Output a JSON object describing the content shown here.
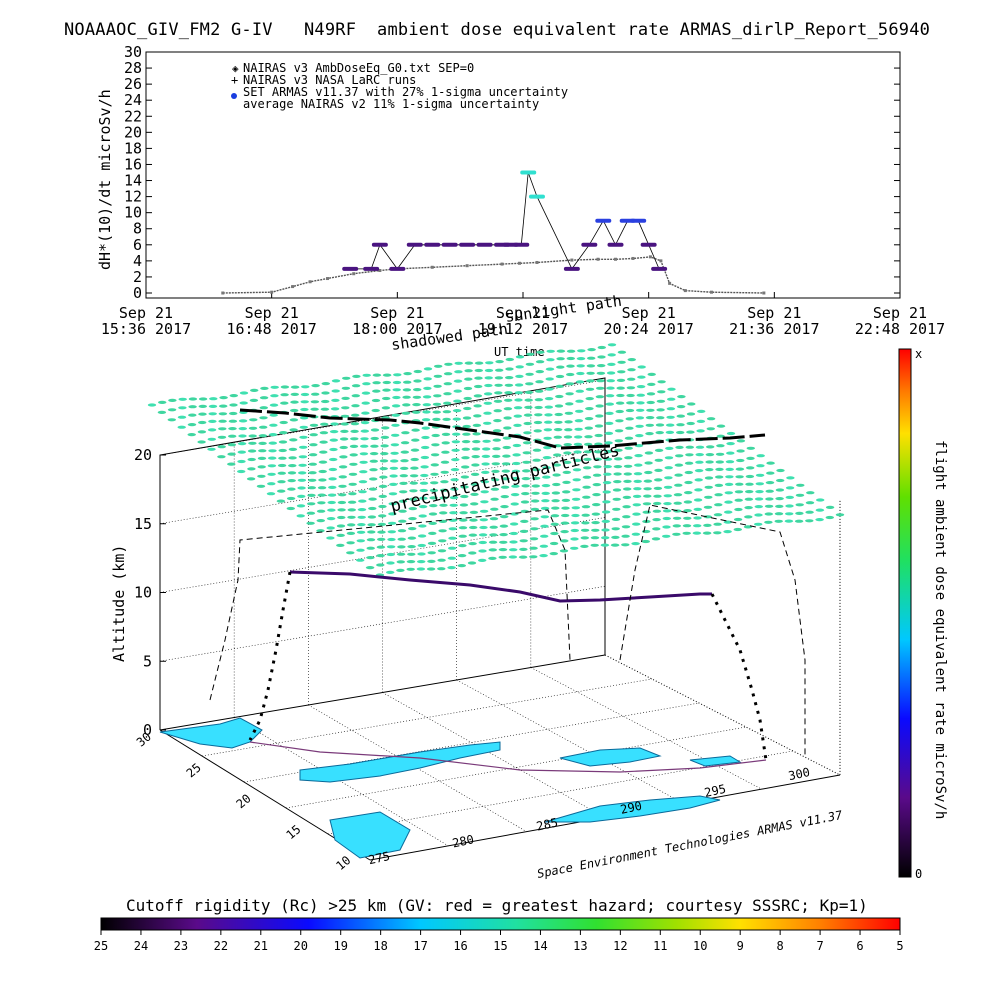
{
  "title": "NOAAAOC_GIV_FM2 G-IV   N49RF  ambient dose equivalent rate ARMAS_dirlP_Report_56940",
  "top_chart": {
    "ylabel": "dH*(10)/dt microSv/h",
    "xlabel": "UT time",
    "yticks": [
      "0",
      "2",
      "4",
      "6",
      "8",
      "10",
      "12",
      "14",
      "16",
      "18",
      "20",
      "22",
      "24",
      "26",
      "28",
      "30"
    ],
    "xticks": [
      {
        "date": "Sep 21",
        "time": "15:36 2017"
      },
      {
        "date": "Sep 21",
        "time": "16:48 2017"
      },
      {
        "date": "Sep 21",
        "time": "18:00 2017"
      },
      {
        "date": "Sep 21",
        "time": "19:12 2017"
      },
      {
        "date": "Sep 21",
        "time": "20:24 2017"
      },
      {
        "date": "Sep 21",
        "time": "21:36 2017"
      },
      {
        "date": "Sep 21",
        "time": "22:48 2017"
      }
    ],
    "legend": [
      "NAIRAS v3 AmbDoseEq_G0.txt SEP=0",
      "NAIRAS v3 NASA LaRC runs",
      "SET ARMAS v11.37 with 27% 1-sigma uncertainty",
      "average NAIRAS v2 11% 1-sigma uncertainty"
    ],
    "overlay_labels": [
      "sunlight path",
      "shadowed path"
    ]
  },
  "chart_data": [
    {
      "type": "scatter",
      "title": "NOAAAOC_GIV_FM2 G-IV   N49RF  ambient dose equivalent rate ARMAS_dirlP_Report_56940",
      "xlabel": "UT time",
      "ylabel": "dH*(10)/dt microSv/h",
      "xlim": [
        "15:36",
        "22:48"
      ],
      "ylim": [
        0,
        30
      ],
      "series": [
        {
          "name": "NAIRAS v3 AmbDoseEq_G0.txt SEP=0",
          "x": [
            "16:20",
            "16:48",
            "17:00",
            "17:10",
            "17:20",
            "17:35",
            "17:50",
            "18:00",
            "18:20",
            "18:40",
            "19:00",
            "19:10",
            "19:20",
            "19:40",
            "19:55",
            "20:05",
            "20:15",
            "20:25",
            "20:31",
            "20:36",
            "20:45",
            "21:00",
            "21:30"
          ],
          "y": [
            0.0,
            0.1,
            0.8,
            1.4,
            1.8,
            2.4,
            2.8,
            3.0,
            3.2,
            3.4,
            3.6,
            3.7,
            3.8,
            4.1,
            4.2,
            4.2,
            4.3,
            4.5,
            4.0,
            1.2,
            0.3,
            0.1,
            0.0
          ]
        },
        {
          "name": "SET ARMAS v11.37 with 27% 1-sigma uncertainty",
          "x": [
            "17:33",
            "17:45",
            "17:50",
            "18:00",
            "18:10",
            "18:20",
            "18:30",
            "18:40",
            "18:50",
            "19:00",
            "19:05",
            "19:11",
            "19:15",
            "19:20",
            "19:40",
            "19:50",
            "19:58",
            "20:05",
            "20:12",
            "20:18",
            "20:24",
            "20:30"
          ],
          "y": [
            3,
            3,
            6,
            3,
            6,
            6,
            6,
            6,
            6,
            6,
            6,
            6,
            15,
            12,
            3,
            6,
            9,
            6,
            9,
            9,
            6,
            3
          ]
        }
      ]
    },
    {
      "type": "scatter",
      "title": "",
      "xlabel": "",
      "ylabel": "Altitude (km)",
      "zlim": [
        0,
        20
      ],
      "zticks": [
        "0",
        "5",
        "10",
        "15",
        "20"
      ],
      "lat_ticks": [
        "10",
        "15",
        "20",
        "25",
        "30"
      ],
      "lon_ticks": [
        "275",
        "280",
        "285",
        "290",
        "295",
        "300"
      ],
      "colorbar": {
        "label": "flight ambient dose equivalent rate microSv/h",
        "min": "0",
        "max": "x"
      },
      "annotation": "precipitating particles",
      "credit": "Space Environment Technologies ARMAS v11.37",
      "series": [
        {
          "name": "flight track",
          "x": [
            0,
            10,
            25,
            45,
            55,
            70,
            80,
            90
          ],
          "y": [
            11.5,
            11.8,
            11.5,
            10.8,
            9.6,
            9.5,
            9.8,
            10.2
          ]
        }
      ]
    },
    {
      "type": "heatmap",
      "title": "Cutoff rigidity (Rc) >25 km (GV: red = greatest hazard; courtesy SSSRC; Kp=1)",
      "ticks": [
        "25",
        "24",
        "23",
        "22",
        "21",
        "20",
        "19",
        "18",
        "17",
        "16",
        "15",
        "14",
        "13",
        "12",
        "11",
        "10",
        "9",
        "8",
        "7",
        "6",
        "5"
      ]
    }
  ],
  "colors": {
    "nairas": "#8a8a8a",
    "armas_low": "#4a1480",
    "armas_mid": "#2a40e0",
    "armas_high": "#30e0d0",
    "grid_particles": "#3fd6a0",
    "map_land": "#38e0ff"
  }
}
